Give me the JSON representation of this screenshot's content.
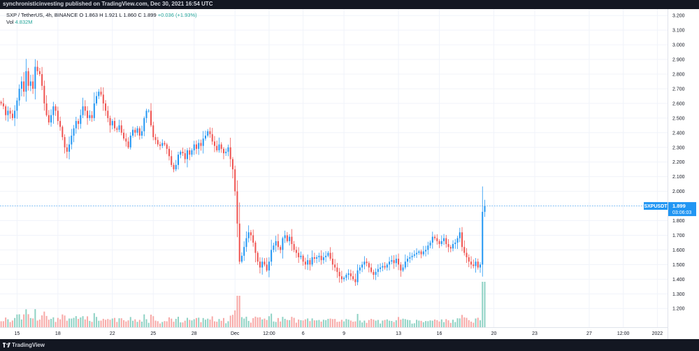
{
  "header": {
    "publisher": "synchronisticinvesting published on TradingView.com, Dec 30, 2021 16:54 UTC"
  },
  "legend": {
    "symbol": "SXP / TetherUS, 4h, BINANCE",
    "open": "O 1.863",
    "high": "H 1.921",
    "low": "L 1.860",
    "close": "C 1.899",
    "change": "+0.036 (+1.93%)",
    "vol_label": "Vol",
    "vol_value": "4.832M"
  },
  "price_label": {
    "symbol": "SXPUSDT",
    "price": "1.899",
    "countdown": "03:06:03"
  },
  "footer": {
    "brand": "TradingView"
  },
  "colors": {
    "up": "#2196f3",
    "down": "#ef5350",
    "vol_up": "#8fd2c4",
    "vol_down": "#f7a9a7",
    "grid": "#f0f3fa",
    "axis_text": "#131722",
    "background": "#ffffff",
    "frame": "#131722"
  },
  "chart_data": {
    "type": "candlestick",
    "interval": "4h",
    "y_ticks": [
      "3.200",
      "3.100",
      "3.000",
      "2.900",
      "2.800",
      "2.700",
      "2.600",
      "2.500",
      "2.400",
      "2.300",
      "2.200",
      "2.100",
      "2.000",
      "1.900",
      "1.800",
      "1.700",
      "1.600",
      "1.500",
      "1.400",
      "1.300",
      "1.200"
    ],
    "ylim": [
      1.12,
      3.22
    ],
    "x_ticks": [
      {
        "label": "15",
        "bar": 7
      },
      {
        "label": "18",
        "bar": 25
      },
      {
        "label": "22",
        "bar": 49
      },
      {
        "label": "25",
        "bar": 67
      },
      {
        "label": "28",
        "bar": 85
      },
      {
        "label": "Dec",
        "bar": 103
      },
      {
        "label": "12:00",
        "bar": 118
      },
      {
        "label": "6",
        "bar": 133
      },
      {
        "label": "9",
        "bar": 151
      },
      {
        "label": "13",
        "bar": 175
      },
      {
        "label": "16",
        "bar": 193
      },
      {
        "label": "20",
        "bar": 217
      },
      {
        "label": "23",
        "bar": 235
      },
      {
        "label": "27",
        "bar": 259
      },
      {
        "label": "12:00",
        "bar": 274
      },
      {
        "label": "2022",
        "bar": 289
      }
    ],
    "bars_total": 292,
    "closes": [
      2.6,
      2.58,
      2.52,
      2.55,
      2.53,
      2.5,
      2.55,
      2.62,
      2.7,
      2.75,
      2.68,
      2.82,
      2.72,
      2.75,
      2.7,
      2.85,
      2.82,
      2.8,
      2.72,
      2.6,
      2.52,
      2.47,
      2.52,
      2.58,
      2.55,
      2.48,
      2.44,
      2.37,
      2.3,
      2.27,
      2.32,
      2.38,
      2.43,
      2.48,
      2.46,
      2.52,
      2.58,
      2.55,
      2.5,
      2.52,
      2.5,
      2.6,
      2.65,
      2.68,
      2.66,
      2.6,
      2.55,
      2.5,
      2.45,
      2.48,
      2.43,
      2.42,
      2.45,
      2.4,
      2.36,
      2.34,
      2.3,
      2.38,
      2.42,
      2.4,
      2.43,
      2.38,
      2.41,
      2.5,
      2.55,
      2.55,
      2.45,
      2.37,
      2.35,
      2.32,
      2.31,
      2.33,
      2.32,
      2.29,
      2.24,
      2.18,
      2.15,
      2.18,
      2.25,
      2.27,
      2.26,
      2.22,
      2.28,
      2.25,
      2.28,
      2.32,
      2.29,
      2.33,
      2.31,
      2.36,
      2.38,
      2.41,
      2.39,
      2.34,
      2.31,
      2.28,
      2.32,
      2.29,
      2.26,
      2.27,
      2.3,
      2.22,
      2.15,
      2.0,
      1.78,
      1.52,
      1.56,
      1.62,
      1.68,
      1.72,
      1.7,
      1.65,
      1.58,
      1.52,
      1.48,
      1.52,
      1.5,
      1.46,
      1.52,
      1.6,
      1.63,
      1.66,
      1.62,
      1.6,
      1.68,
      1.7,
      1.66,
      1.69,
      1.64,
      1.6,
      1.58,
      1.55,
      1.56,
      1.52,
      1.5,
      1.53,
      1.5,
      1.55,
      1.54,
      1.55,
      1.56,
      1.53,
      1.55,
      1.56,
      1.58,
      1.54,
      1.5,
      1.48,
      1.45,
      1.42,
      1.4,
      1.41,
      1.43,
      1.44,
      1.42,
      1.4,
      1.38,
      1.46,
      1.48,
      1.5,
      1.52,
      1.51,
      1.48,
      1.45,
      1.43,
      1.45,
      1.47,
      1.48,
      1.49,
      1.48,
      1.5,
      1.52,
      1.53,
      1.51,
      1.54,
      1.5,
      1.46,
      1.48,
      1.52,
      1.54,
      1.55,
      1.56,
      1.57,
      1.58,
      1.59,
      1.57,
      1.59,
      1.6,
      1.63,
      1.65,
      1.69,
      1.68,
      1.66,
      1.64,
      1.66,
      1.68,
      1.64,
      1.62,
      1.61,
      1.64,
      1.65,
      1.68,
      1.72,
      1.62,
      1.58,
      1.55,
      1.52,
      1.5,
      1.49,
      1.52,
      1.48,
      1.5,
      1.86,
      1.9
    ],
    "volume_ticks": "relative"
  }
}
